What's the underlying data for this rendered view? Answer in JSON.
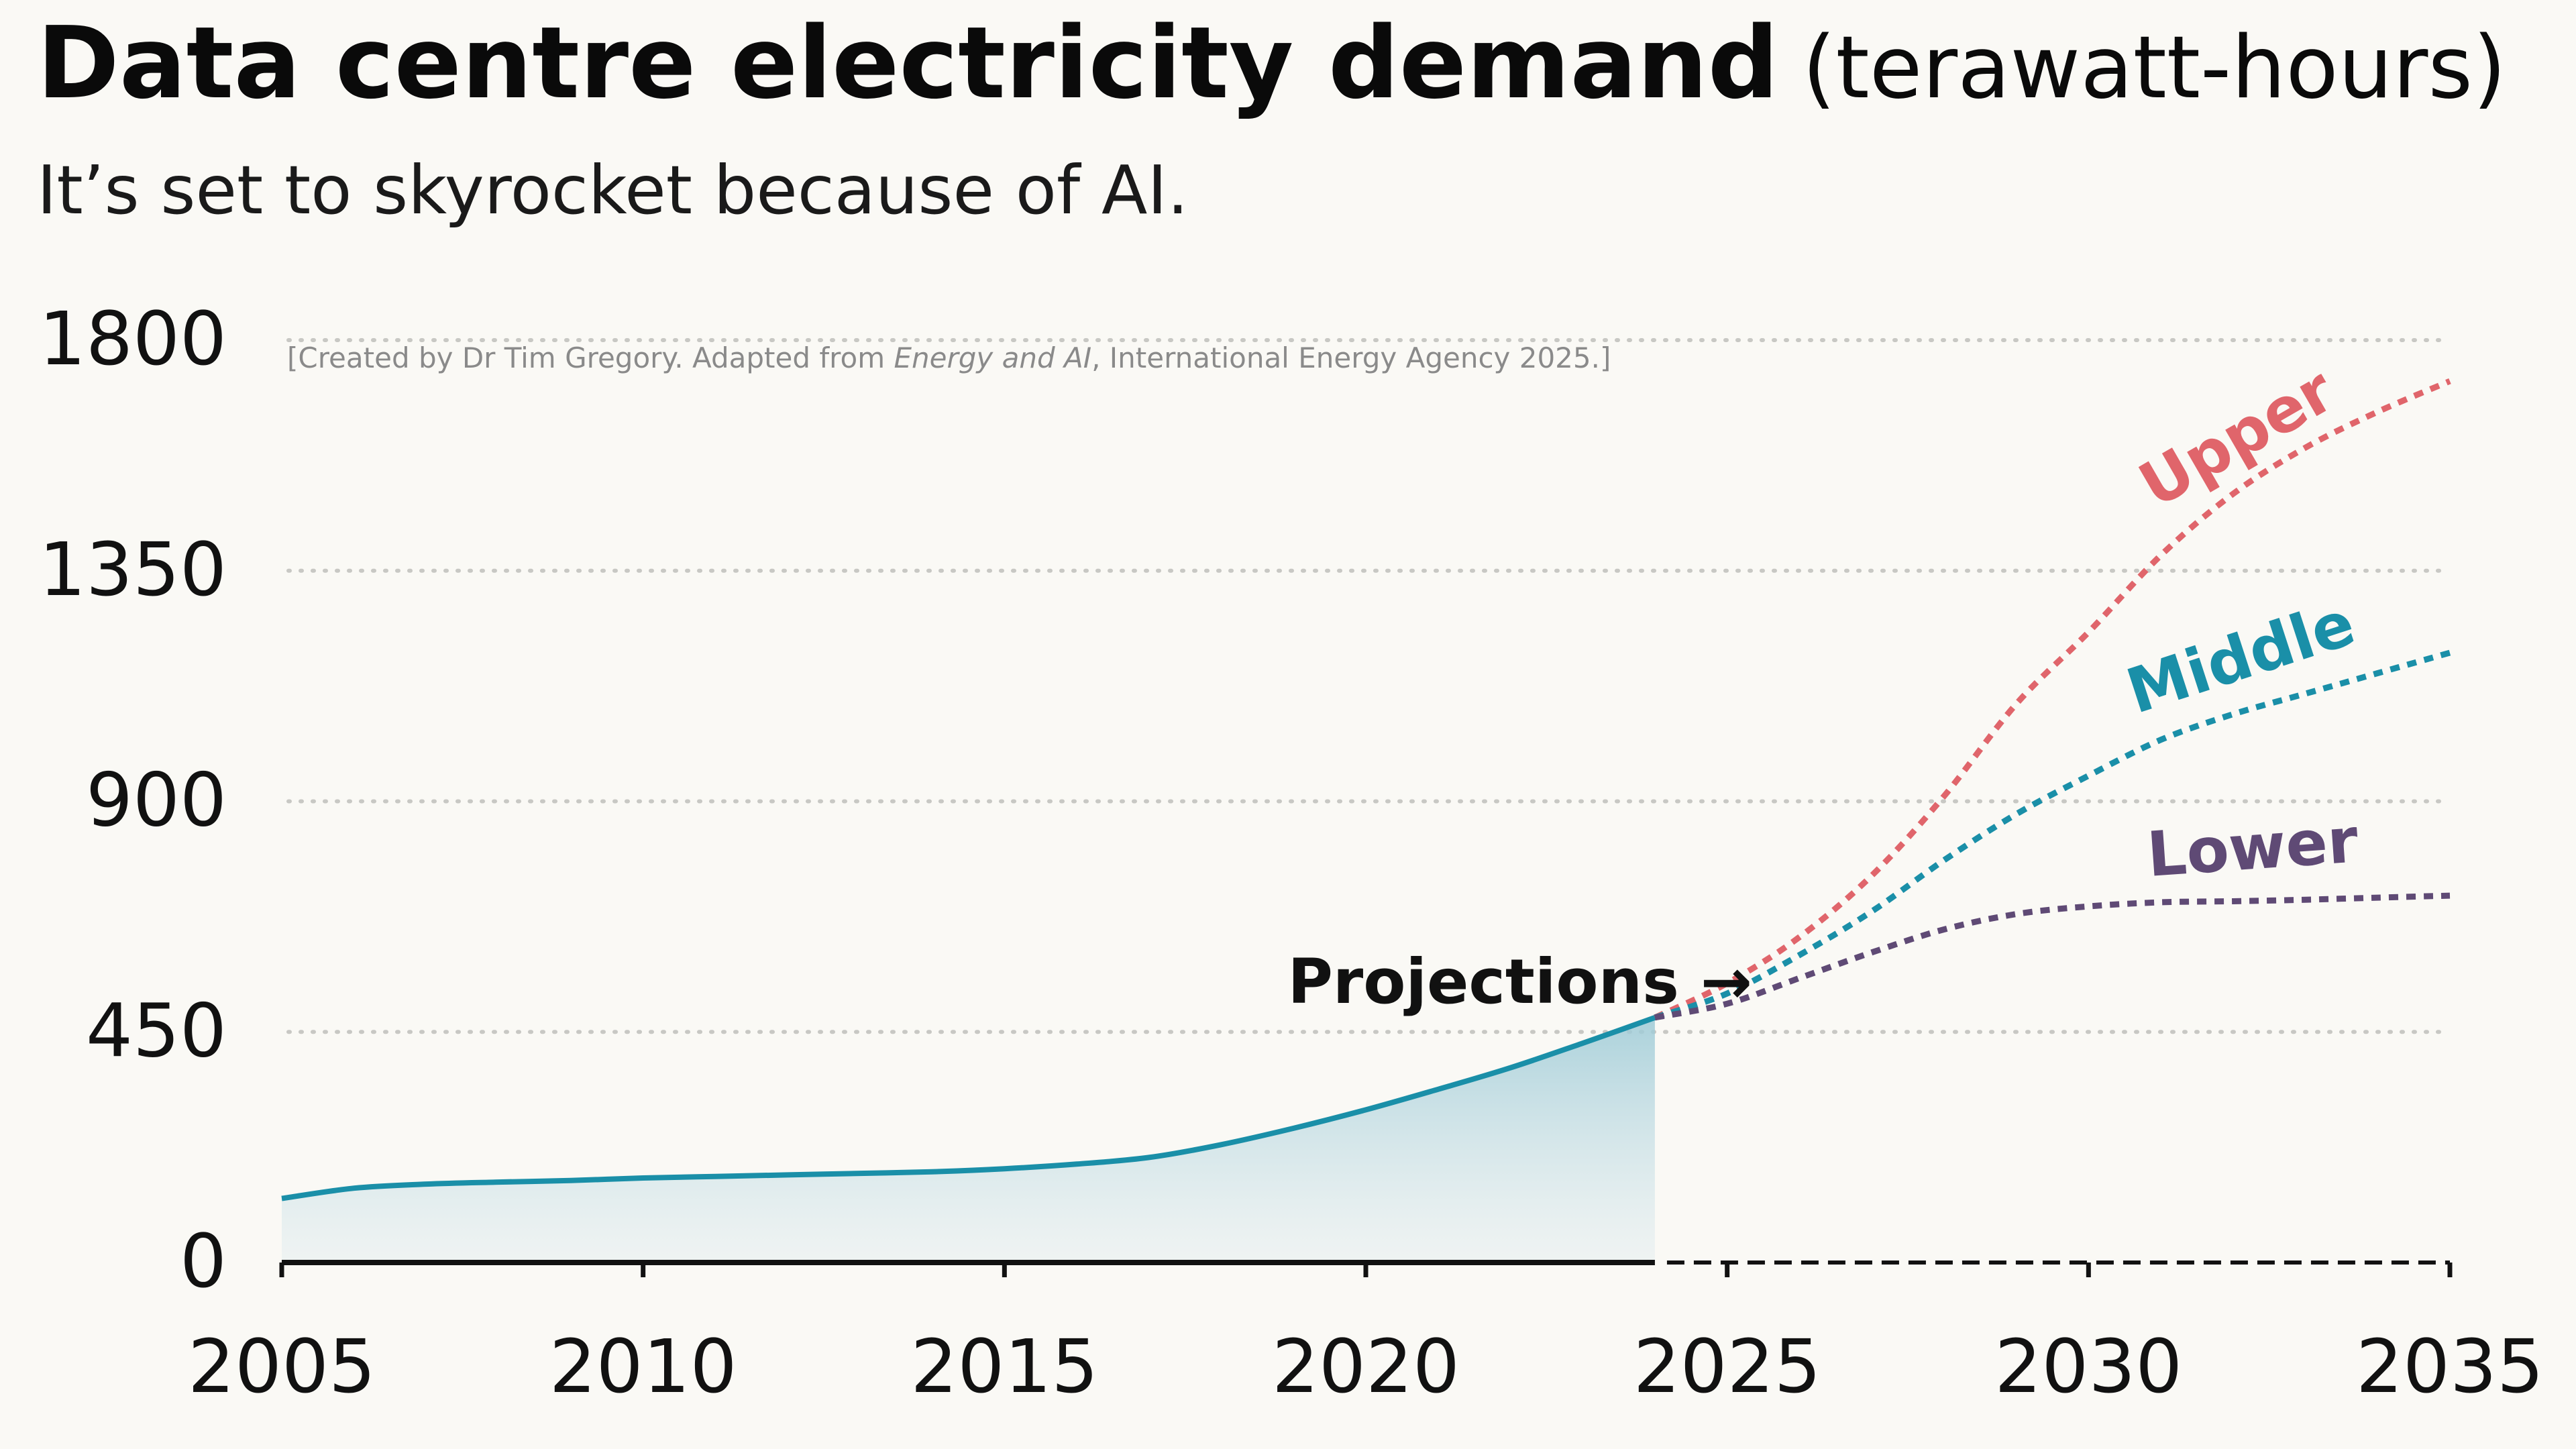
{
  "header": {
    "title": "Data centre electricity demand",
    "title_unit": "(terawatt-hours)",
    "subtitle": "It’s set to skyrocket because of AI."
  },
  "credit": {
    "prefix": "[Created by Dr Tim Gregory. Adapted from ",
    "source_title": "Energy and AI",
    "suffix": ", International Energy Agency 2025.]"
  },
  "annotation": {
    "text": "Projections →"
  },
  "colors": {
    "historic": "#1a8fa8",
    "upper": "#e0656b",
    "middle": "#1a8fa8",
    "lower": "#5f4a75",
    "axis": "#111111",
    "grid": "#c8c8c4"
  },
  "chart_data": {
    "type": "line",
    "title": "Data centre electricity demand",
    "ylabel": "terawatt-hours",
    "xlim": [
      2005,
      2035
    ],
    "ylim": [
      0,
      1800
    ],
    "x_ticks": [
      "2005",
      "2010",
      "2015",
      "2020",
      "2025",
      "2030",
      "2035"
    ],
    "y_ticks": [
      "0",
      "450",
      "900",
      "1350",
      "1800"
    ],
    "grid": "horizontal dotted",
    "historic": {
      "x": [
        2005,
        2006,
        2007,
        2008,
        2009,
        2010,
        2011,
        2012,
        2013,
        2014,
        2015,
        2016,
        2017,
        2018,
        2019,
        2020,
        2021,
        2022,
        2023,
        2024
      ],
      "y": [
        125,
        145,
        153,
        157,
        160,
        165,
        168,
        171,
        174,
        177,
        183,
        192,
        205,
        230,
        262,
        298,
        338,
        380,
        428,
        478
      ]
    },
    "series": [
      {
        "name": "Upper",
        "x": [
          2024,
          2025,
          2026,
          2027,
          2028,
          2029,
          2030,
          2031,
          2032,
          2033,
          2034,
          2035
        ],
        "y": [
          478,
          545,
          635,
          755,
          910,
          1090,
          1230,
          1380,
          1500,
          1590,
          1660,
          1720
        ]
      },
      {
        "name": "Middle",
        "x": [
          2024,
          2025,
          2026,
          2027,
          2028,
          2029,
          2030,
          2031,
          2032,
          2033,
          2034,
          2035
        ],
        "y": [
          478,
          525,
          600,
          685,
          785,
          875,
          950,
          1020,
          1070,
          1110,
          1150,
          1190
        ]
      },
      {
        "name": "Lower",
        "x": [
          2024,
          2025,
          2026,
          2027,
          2028,
          2029,
          2030,
          2031,
          2032,
          2033,
          2034,
          2035
        ],
        "y": [
          478,
          505,
          555,
          605,
          650,
          680,
          695,
          703,
          705,
          708,
          712,
          716
        ]
      }
    ]
  }
}
